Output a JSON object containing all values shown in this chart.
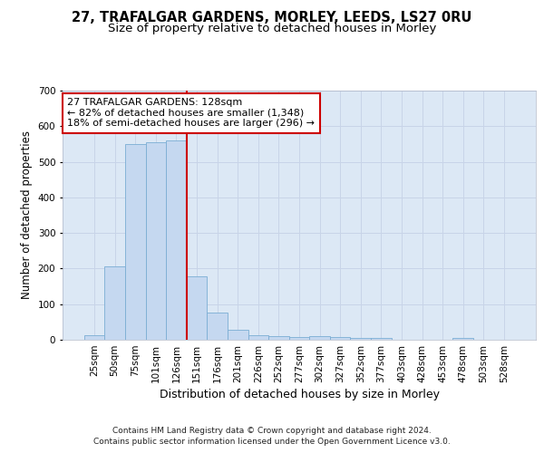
{
  "title1": "27, TRAFALGAR GARDENS, MORLEY, LEEDS, LS27 0RU",
  "title2": "Size of property relative to detached houses in Morley",
  "xlabel": "Distribution of detached houses by size in Morley",
  "ylabel": "Number of detached properties",
  "categories": [
    "25sqm",
    "50sqm",
    "75sqm",
    "101sqm",
    "126sqm",
    "151sqm",
    "176sqm",
    "201sqm",
    "226sqm",
    "252sqm",
    "277sqm",
    "302sqm",
    "327sqm",
    "352sqm",
    "377sqm",
    "403sqm",
    "428sqm",
    "453sqm",
    "478sqm",
    "503sqm",
    "528sqm"
  ],
  "values": [
    12,
    205,
    550,
    555,
    560,
    178,
    77,
    28,
    12,
    10,
    8,
    10,
    7,
    5,
    5,
    0,
    0,
    0,
    5,
    0,
    0
  ],
  "bar_color": "#c5d8f0",
  "bar_edge_color": "#7badd4",
  "vline_color": "#cc0000",
  "annotation_text": "27 TRAFALGAR GARDENS: 128sqm\n← 82% of detached houses are smaller (1,348)\n18% of semi-detached houses are larger (296) →",
  "annotation_box_color": "#ffffff",
  "annotation_box_edge": "#cc0000",
  "ylim": [
    0,
    700
  ],
  "yticks": [
    0,
    100,
    200,
    300,
    400,
    500,
    600,
    700
  ],
  "grid_color": "#c8d4e8",
  "bg_color": "#dce8f5",
  "footnote1": "Contains HM Land Registry data © Crown copyright and database right 2024.",
  "footnote2": "Contains public sector information licensed under the Open Government Licence v3.0.",
  "title1_fontsize": 10.5,
  "title2_fontsize": 9.5,
  "tick_fontsize": 7.5,
  "ylabel_fontsize": 8.5,
  "xlabel_fontsize": 9,
  "annotation_fontsize": 8,
  "footnote_fontsize": 6.5
}
